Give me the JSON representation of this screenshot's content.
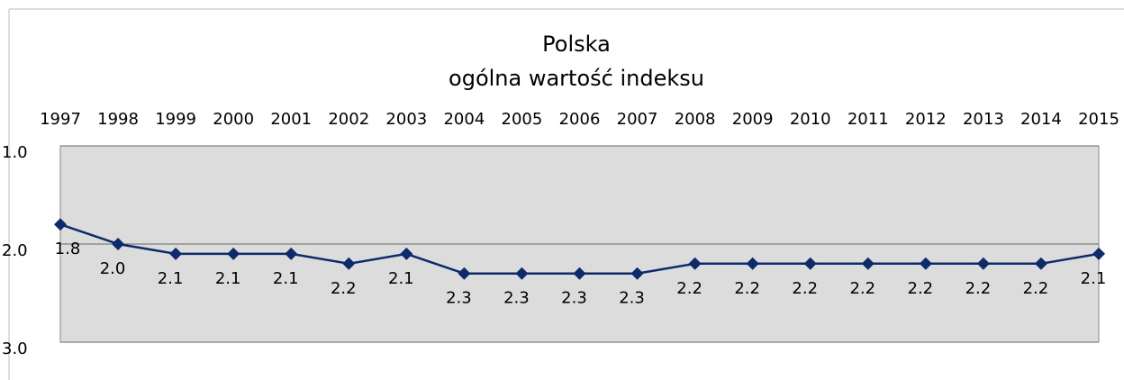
{
  "chart_data": {
    "type": "line",
    "title": "Polska",
    "subtitle": "ogólna wartość indeksu",
    "categories": [
      "1997",
      "1998",
      "1999",
      "2000",
      "2001",
      "2002",
      "2003",
      "2004",
      "2005",
      "2006",
      "2007",
      "2008",
      "2009",
      "2010",
      "2011",
      "2012",
      "2013",
      "2014",
      "2015"
    ],
    "series": [
      {
        "name": "Polska",
        "color": "#0d2a6b",
        "values": [
          1.8,
          2.0,
          2.1,
          2.1,
          2.1,
          2.2,
          2.1,
          2.3,
          2.3,
          2.3,
          2.3,
          2.2,
          2.2,
          2.2,
          2.2,
          2.2,
          2.2,
          2.2,
          2.1
        ],
        "value_labels": [
          "1.8",
          "2.0",
          "2.1",
          "2.1",
          "2.1",
          "2.2",
          "2.1",
          "2.3",
          "2.3",
          "2.3",
          "2.3",
          "2.2",
          "2.2",
          "2.2",
          "2.2",
          "2.2",
          "2.2",
          "2.2",
          "2.1"
        ]
      }
    ],
    "ylim": [
      1,
      3
    ],
    "y_inverted": true,
    "yticks": [
      {
        "value": 1,
        "label": "1.0"
      },
      {
        "value": 2,
        "label": "2.0"
      },
      {
        "value": 3,
        "label": "3.0"
      }
    ],
    "grid": true,
    "plot_background": "#dcdcdc"
  }
}
